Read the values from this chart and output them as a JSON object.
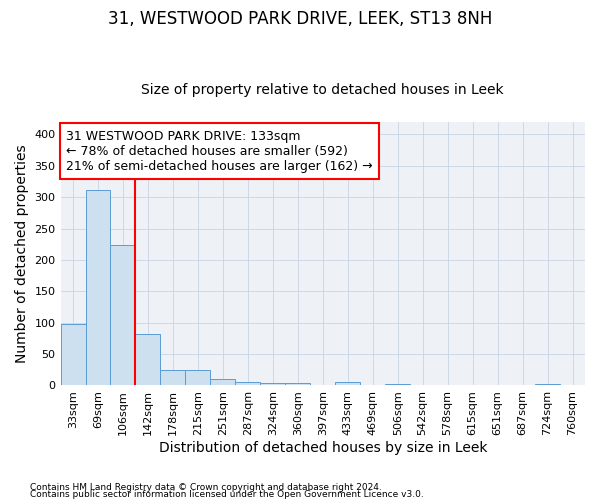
{
  "title": "31, WESTWOOD PARK DRIVE, LEEK, ST13 8NH",
  "subtitle": "Size of property relative to detached houses in Leek",
  "xlabel": "Distribution of detached houses by size in Leek",
  "ylabel": "Number of detached properties",
  "footnote1": "Contains HM Land Registry data © Crown copyright and database right 2024.",
  "footnote2": "Contains public sector information licensed under the Open Government Licence v3.0.",
  "categories": [
    "33sqm",
    "69sqm",
    "106sqm",
    "142sqm",
    "178sqm",
    "215sqm",
    "251sqm",
    "287sqm",
    "324sqm",
    "360sqm",
    "397sqm",
    "433sqm",
    "469sqm",
    "506sqm",
    "542sqm",
    "578sqm",
    "615sqm",
    "651sqm",
    "687sqm",
    "724sqm",
    "760sqm"
  ],
  "values": [
    98,
    312,
    224,
    82,
    25,
    25,
    11,
    5,
    4,
    4,
    0,
    6,
    0,
    2,
    0,
    0,
    0,
    0,
    0,
    3,
    0
  ],
  "bar_color": "#cce0f0",
  "bar_edge_color": "#5b9bd5",
  "vline_x_index": 3,
  "vline_color": "red",
  "annotation_text": "31 WESTWOOD PARK DRIVE: 133sqm\n← 78% of detached houses are smaller (592)\n21% of semi-detached houses are larger (162) →",
  "annotation_box_facecolor": "white",
  "annotation_box_edgecolor": "red",
  "ylim": [
    0,
    420
  ],
  "yticks": [
    0,
    50,
    100,
    150,
    200,
    250,
    300,
    350,
    400
  ],
  "background_color": "#ffffff",
  "plot_bg_color": "#eef2f7",
  "title_fontsize": 12,
  "subtitle_fontsize": 10,
  "tick_fontsize": 8,
  "label_fontsize": 10,
  "annotation_fontsize": 9
}
